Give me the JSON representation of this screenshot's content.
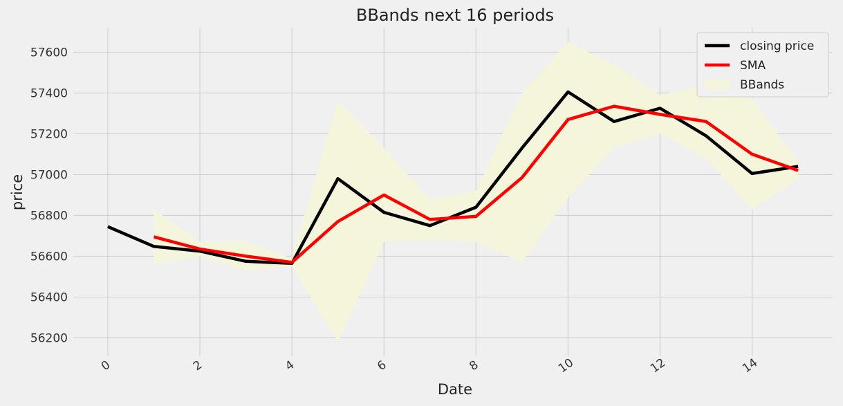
{
  "chart_data": {
    "type": "line",
    "title": "BBands next 16 periods",
    "xlabel": "Date",
    "ylabel": "price",
    "xlim": [
      -0.75,
      15.75
    ],
    "ylim": [
      56110,
      57720
    ],
    "xticks": [
      0,
      2,
      4,
      6,
      8,
      10,
      12,
      14
    ],
    "yticks": [
      56200,
      56400,
      56600,
      56800,
      57000,
      57200,
      57400,
      57600
    ],
    "grid": true,
    "legend_position": "top-right",
    "x": [
      0,
      1,
      2,
      3,
      4,
      5,
      6,
      7,
      8,
      9,
      10,
      11,
      12,
      13,
      14,
      15
    ],
    "series": [
      {
        "name": "closing price",
        "color": "#000000",
        "values": [
          56745,
          56648,
          56625,
          56575,
          56565,
          56980,
          56815,
          56750,
          56840,
          57130,
          57405,
          57260,
          57325,
          57190,
          57005,
          57040
        ]
      },
      {
        "name": "SMA",
        "color": "#ff0000",
        "x": [
          1,
          2,
          3,
          4,
          5,
          6,
          7,
          8,
          9,
          10,
          11,
          12,
          13,
          14,
          15
        ],
        "values": [
          56695,
          56635,
          56600,
          56570,
          56770,
          56900,
          56780,
          56795,
          56985,
          57270,
          57335,
          57295,
          57260,
          57100,
          57020
        ]
      }
    ],
    "bands": {
      "name": "BBands",
      "color": "#f5f5dc",
      "x": [
        1,
        2,
        3,
        4,
        5,
        6,
        7,
        8,
        9,
        10,
        11,
        12,
        13,
        14,
        15
      ],
      "upper": [
        56830,
        56670,
        56670,
        56590,
        57360,
        57130,
        56880,
        56920,
        57400,
        57650,
        57540,
        57390,
        57440,
        57370,
        57060
      ],
      "lower": [
        56560,
        56600,
        56530,
        56550,
        56180,
        56670,
        56680,
        56670,
        56570,
        56890,
        57130,
        57200,
        57080,
        56830,
        56980
      ]
    }
  }
}
